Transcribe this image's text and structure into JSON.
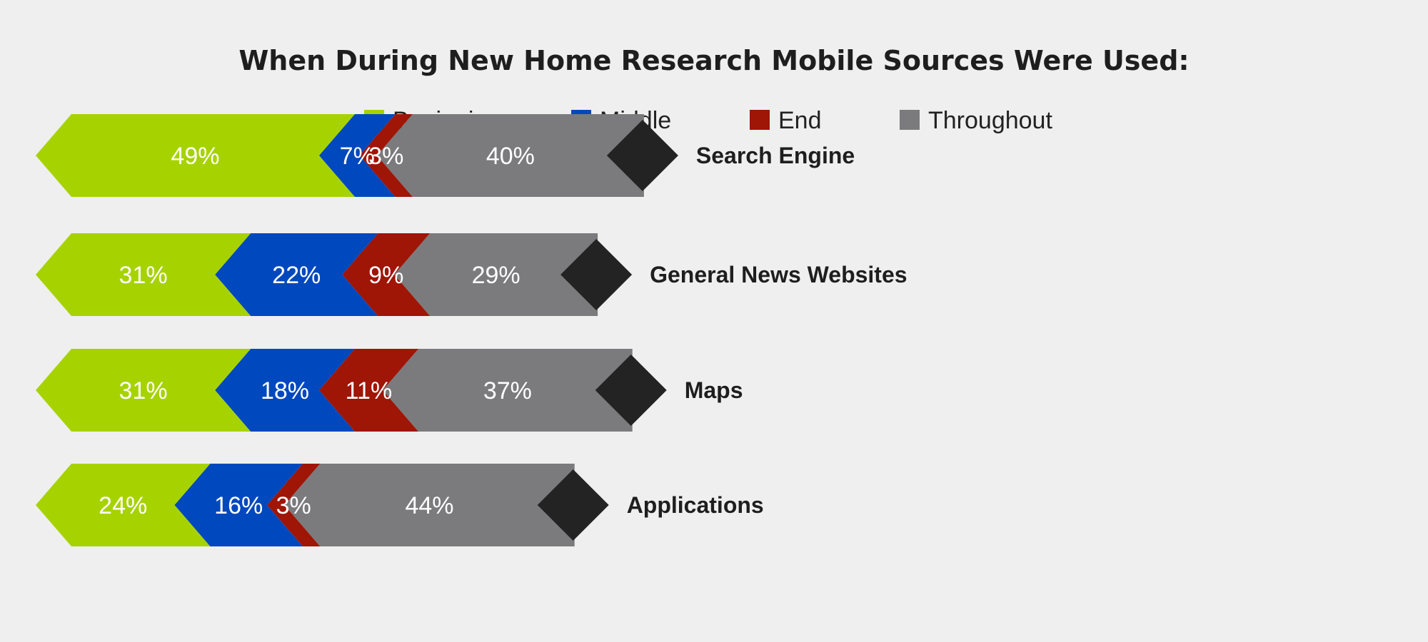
{
  "chart_data": {
    "type": "bar",
    "subtype": "stacked-horizontal",
    "title": "When During New Home Research Mobile Sources Were Used:",
    "categories": [
      "Search Engine",
      "General News Websites",
      "Maps",
      "Applications"
    ],
    "series": [
      {
        "name": "Beginning",
        "color": "#a6d300",
        "values": [
          49,
          31,
          31,
          24
        ]
      },
      {
        "name": "Middle",
        "color": "#0048bd",
        "values": [
          7,
          22,
          18,
          16
        ]
      },
      {
        "name": "End",
        "color": "#9f1506",
        "values": [
          3,
          9,
          11,
          3
        ]
      },
      {
        "name": "Throughout",
        "color": "#7b7b7d",
        "values": [
          40,
          29,
          37,
          44
        ]
      }
    ],
    "value_suffix": "%",
    "end_marker_color": "#232323",
    "legend_position": "top",
    "grid": false
  }
}
